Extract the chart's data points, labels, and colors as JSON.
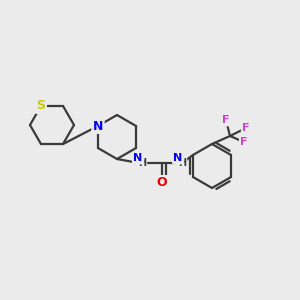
{
  "background_color": "#ebebeb",
  "bond_color": "#3a3a3a",
  "bond_width": 1.6,
  "atom_colors": {
    "S": "#cccc00",
    "N": "#0000ee",
    "O": "#ee0000",
    "F": "#cc44cc",
    "C": "#3a3a3a",
    "H": "#3a3a3a"
  },
  "figsize": [
    3.0,
    3.0
  ],
  "dpi": 100
}
